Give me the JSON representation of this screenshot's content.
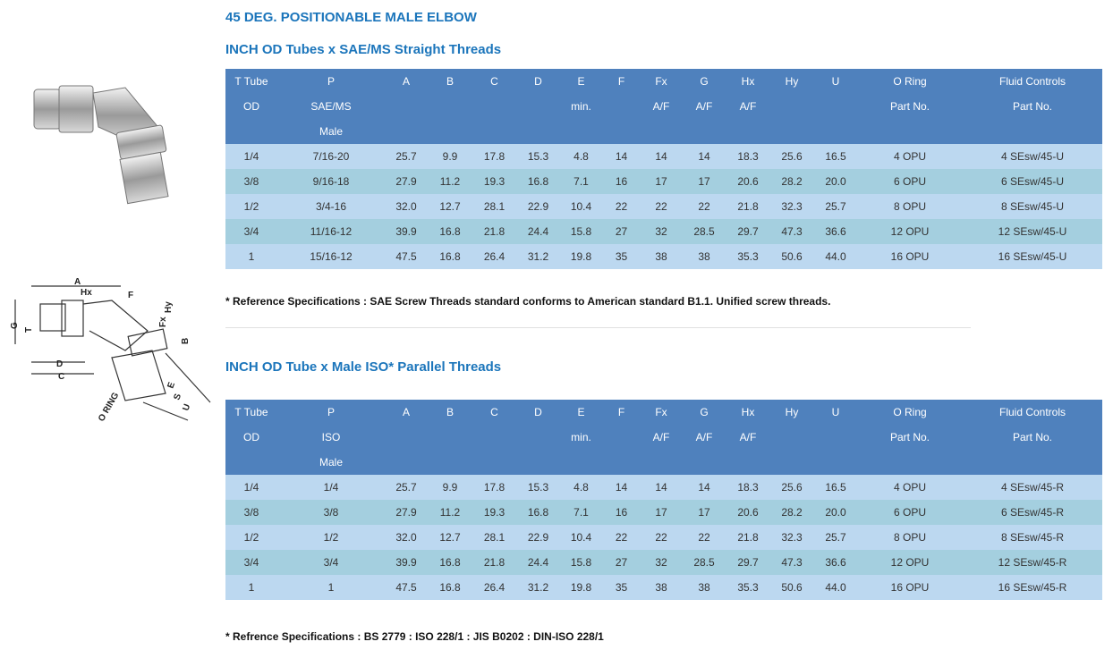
{
  "title": "45 DEG. POSITIONABLE MALE ELBOW",
  "diagram": {
    "labels": [
      "A",
      "Hx",
      "F",
      "G",
      "T",
      "Fx",
      "Hy",
      "B",
      "D",
      "C",
      "E",
      "S",
      "U",
      "O RING"
    ]
  },
  "sections": [
    {
      "subtitle": "INCH OD Tubes x SAE/MS Straight Threads",
      "table": {
        "header": [
          [
            "T Tube",
            "OD"
          ],
          [
            "P",
            "SAE/MS",
            "Male"
          ],
          [
            "A"
          ],
          [
            "B"
          ],
          [
            "C"
          ],
          [
            "D"
          ],
          [
            "E",
            "min."
          ],
          [
            "F"
          ],
          [
            "Fx",
            "A/F"
          ],
          [
            "G",
            "A/F"
          ],
          [
            "Hx",
            "A/F"
          ],
          [
            "Hy"
          ],
          [
            "U"
          ],
          [
            "O Ring",
            "Part No."
          ],
          [
            "Fluid Controls",
            "Part No."
          ]
        ],
        "rows": [
          [
            "1/4",
            "7/16-20",
            "25.7",
            "9.9",
            "17.8",
            "15.3",
            "4.8",
            "14",
            "14",
            "14",
            "18.3",
            "25.6",
            "16.5",
            "4 OPU",
            "4 SEsw/45-U"
          ],
          [
            "3/8",
            "9/16-18",
            "27.9",
            "11.2",
            "19.3",
            "16.8",
            "7.1",
            "16",
            "17",
            "17",
            "20.6",
            "28.2",
            "20.0",
            "6 OPU",
            "6 SEsw/45-U"
          ],
          [
            "1/2",
            "3/4-16",
            "32.0",
            "12.7",
            "28.1",
            "22.9",
            "10.4",
            "22",
            "22",
            "22",
            "21.8",
            "32.3",
            "25.7",
            "8 OPU",
            "8 SEsw/45-U"
          ],
          [
            "3/4",
            "11/16-12",
            "39.9",
            "16.8",
            "21.8",
            "24.4",
            "15.8",
            "27",
            "32",
            "28.5",
            "29.7",
            "47.3",
            "36.6",
            "12 OPU",
            "12 SEsw/45-U"
          ],
          [
            "1",
            "15/16-12",
            "47.5",
            "16.8",
            "26.4",
            "31.2",
            "19.8",
            "35",
            "38",
            "38",
            "35.3",
            "50.6",
            "44.0",
            "16 OPU",
            "16 SEsw/45-U"
          ]
        ]
      },
      "note": "* Reference Specifications : SAE Screw Threads standard conforms to American standard B1.1.  Unified screw threads."
    },
    {
      "subtitle": "INCH OD Tube x Male ISO* Parallel Threads",
      "table": {
        "header": [
          [
            "T Tube",
            "OD"
          ],
          [
            "P",
            "ISO",
            "Male"
          ],
          [
            "A"
          ],
          [
            "B"
          ],
          [
            "C"
          ],
          [
            "D"
          ],
          [
            "E",
            "min."
          ],
          [
            "F"
          ],
          [
            "Fx",
            "A/F"
          ],
          [
            "G",
            "A/F"
          ],
          [
            "Hx",
            "A/F"
          ],
          [
            "Hy"
          ],
          [
            "U"
          ],
          [
            "O Ring",
            "Part No."
          ],
          [
            "Fluid Controls",
            "Part No."
          ]
        ],
        "rows": [
          [
            "1/4",
            "1/4",
            "25.7",
            "9.9",
            "17.8",
            "15.3",
            "4.8",
            "14",
            "14",
            "14",
            "18.3",
            "25.6",
            "16.5",
            "4 OPU",
            "4 SEsw/45-R"
          ],
          [
            "3/8",
            "3/8",
            "27.9",
            "11.2",
            "19.3",
            "16.8",
            "7.1",
            "16",
            "17",
            "17",
            "20.6",
            "28.2",
            "20.0",
            "6 OPU",
            "6 SEsw/45-R"
          ],
          [
            "1/2",
            "1/2",
            "32.0",
            "12.7",
            "28.1",
            "22.9",
            "10.4",
            "22",
            "22",
            "22",
            "21.8",
            "32.3",
            "25.7",
            "8 OPU",
            "8 SEsw/45-R"
          ],
          [
            "3/4",
            "3/4",
            "39.9",
            "16.8",
            "21.8",
            "24.4",
            "15.8",
            "27",
            "32",
            "28.5",
            "29.7",
            "47.3",
            "36.6",
            "12 OPU",
            "12 SEsw/45-R"
          ],
          [
            "1",
            "1",
            "47.5",
            "16.8",
            "26.4",
            "31.2",
            "19.8",
            "35",
            "38",
            "38",
            "35.3",
            "50.6",
            "44.0",
            "16 OPU",
            "16 SEsw/45-R"
          ]
        ]
      },
      "note": "* Refrence Specifications : BS 2779 : ISO 228/1 : JIS B0202 : DIN-ISO 228/1"
    }
  ]
}
